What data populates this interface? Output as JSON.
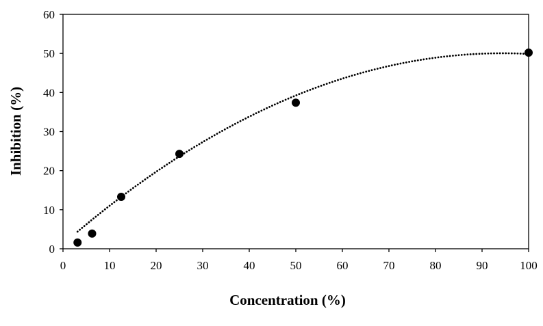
{
  "chart_data": {
    "type": "scatter",
    "xlabel": "Concentration (%)",
    "ylabel": "Inhibition (%)",
    "xlim": [
      0,
      100
    ],
    "ylim": [
      0,
      60
    ],
    "xticks": [
      "0",
      "10",
      "20",
      "30",
      "40",
      "50",
      "60",
      "70",
      "80",
      "90",
      "100"
    ],
    "yticks": [
      "0",
      "10",
      "20",
      "30",
      "40",
      "50",
      "60"
    ],
    "points": [
      {
        "x": 3.125,
        "y": 1.6
      },
      {
        "x": 6.25,
        "y": 3.9
      },
      {
        "x": 12.5,
        "y": 13.3
      },
      {
        "x": 25,
        "y": 24.3
      },
      {
        "x": 50,
        "y": 37.4
      },
      {
        "x": 100,
        "y": 50.2
      }
    ],
    "trendline": {
      "type": "polynomial",
      "style": "dotted",
      "x_range": [
        3.125,
        100
      ],
      "coefficients": [
        -0.00548,
        1.0347,
        1.2
      ]
    },
    "grid": false,
    "legend": "none",
    "colors": {
      "marker": "#000000",
      "trendline": "#000000",
      "axes": "#000000"
    }
  }
}
